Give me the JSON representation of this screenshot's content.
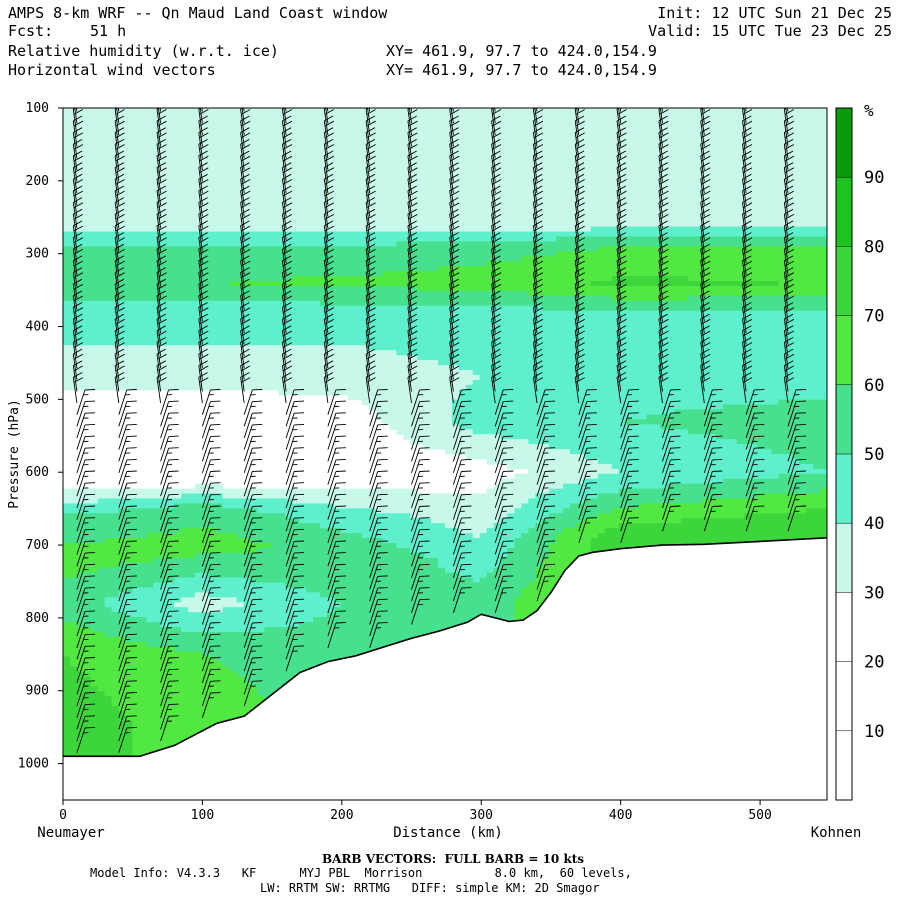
{
  "header": {
    "title": "AMPS 8-km WRF -- Qn Maud Land Coast window",
    "fcst_label": "Fcst:",
    "fcst_value": "51 h",
    "init": "Init: 12 UTC Sun 21 Dec 25",
    "valid": "Valid: 15 UTC Tue 23 Dec 25",
    "field1": "Relative humidity (w.r.t. ice)",
    "field2": "Horizontal wind vectors",
    "xy1": "XY= 461.9, 97.7 to 424.0,154.9",
    "xy2": "XY= 461.9, 97.7 to 424.0,154.9"
  },
  "footer": {
    "barb_note": "BARB VECTORS:  FULL BARB = 10 kts",
    "model_info": "Model Info: V4.3.3   KF      MYJ PBL  Morrison          8.0 km,  60 levels,",
    "physics": "LW: RRTM SW: RRTMG   DIFF: simple KM: 2D Smagor"
  },
  "chart_data": {
    "type": "heatmap",
    "xlabel": "Distance (km)",
    "ylabel": "Pressure (hPa)",
    "x_left_label": "Neumayer",
    "x_right_label": "Kohnen",
    "xlim": [
      0,
      548
    ],
    "ylim": [
      1050,
      100
    ],
    "x_ticks": [
      0,
      100,
      200,
      300,
      400,
      500
    ],
    "y_ticks": [
      100,
      200,
      300,
      400,
      500,
      600,
      700,
      800,
      900,
      1000
    ],
    "colorbar": {
      "unit": "%",
      "levels": [
        0,
        10,
        20,
        30,
        40,
        50,
        60,
        70,
        80,
        90,
        100
      ],
      "tick_labels": [
        10,
        20,
        30,
        40,
        50,
        60,
        70,
        80,
        90
      ],
      "colors": [
        "#ffffff",
        "#ffffff",
        "#ffffff",
        "#c8f8ea",
        "#5ef0cc",
        "#46e08e",
        "#52e842",
        "#3cd63c",
        "#1ec41e",
        "#0a9a0a"
      ]
    },
    "terrain": {
      "distance_km": [
        0,
        30,
        55,
        80,
        110,
        130,
        150,
        170,
        190,
        210,
        230,
        250,
        270,
        290,
        300,
        310,
        320,
        330,
        340,
        350,
        360,
        370,
        380,
        400,
        430,
        460,
        500,
        548
      ],
      "surface_pressure_hPa": [
        990,
        990,
        990,
        975,
        945,
        935,
        905,
        875,
        860,
        852,
        840,
        828,
        818,
        806,
        795,
        800,
        805,
        803,
        790,
        765,
        735,
        715,
        710,
        705,
        700,
        699,
        695,
        690
      ]
    },
    "rh_profiles": [
      {
        "distance_km": 0,
        "pressure_hPa": [
          260,
          290,
          340,
          380,
          470,
          520,
          600,
          660,
          720,
          780,
          850,
          950
        ],
        "rh_pct": [
          35,
          50,
          60,
          45,
          35,
          20,
          15,
          50,
          65,
          55,
          70,
          75
        ]
      },
      {
        "distance_km": 100,
        "pressure_hPa": [
          260,
          290,
          340,
          380,
          470,
          520,
          600,
          650,
          700,
          780,
          850,
          930
        ],
        "rh_pct": [
          35,
          50,
          60,
          45,
          35,
          20,
          15,
          55,
          65,
          35,
          60,
          65
        ]
      },
      {
        "distance_km": 200,
        "pressure_hPa": [
          260,
          290,
          340,
          380,
          470,
          520,
          600,
          660,
          720,
          780,
          850
        ],
        "rh_pct": [
          35,
          50,
          62,
          45,
          35,
          25,
          20,
          45,
          60,
          50,
          55
        ]
      },
      {
        "distance_km": 300,
        "pressure_hPa": [
          260,
          290,
          340,
          380,
          470,
          530,
          600,
          660,
          720,
          780
        ],
        "rh_pct": [
          35,
          55,
          65,
          45,
          40,
          45,
          25,
          35,
          45,
          55
        ]
      },
      {
        "distance_km": 400,
        "pressure_hPa": [
          260,
          290,
          340,
          380,
          470,
          530,
          600,
          660,
          690
        ],
        "rh_pct": [
          35,
          60,
          72,
          50,
          45,
          50,
          40,
          65,
          78
        ]
      },
      {
        "distance_km": 548,
        "pressure_hPa": [
          260,
          290,
          340,
          380,
          470,
          530,
          600,
          650,
          680
        ],
        "rh_pct": [
          35,
          60,
          70,
          50,
          45,
          55,
          50,
          70,
          80
        ]
      }
    ],
    "wind_barbs": {
      "columns_km": [
        10,
        40,
        70,
        100,
        130,
        160,
        190,
        220,
        250,
        280,
        310,
        340,
        370,
        400,
        430,
        460,
        490,
        520
      ],
      "units": "kts",
      "upper_speed_kts": 20,
      "lower_speed_kts": 15
    }
  }
}
